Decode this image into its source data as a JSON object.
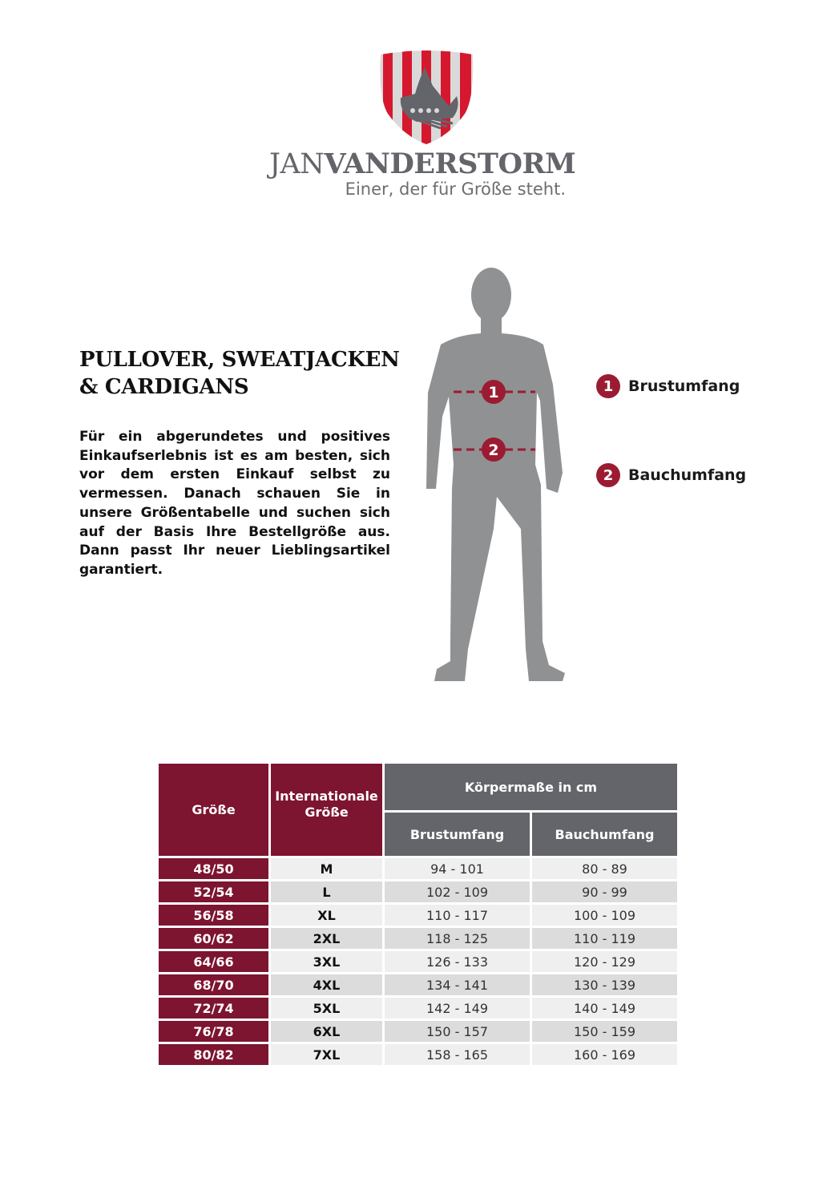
{
  "brand": {
    "name_light": "JAN",
    "name_bold": "VANDERSTORM",
    "tagline": "Einer, der für Größe steht."
  },
  "title": {
    "line1": "PULLOVER, SWEATJACKEN",
    "line2": "& CARDIGANS"
  },
  "intro": "Für ein abgerundetes und positives Einkaufserlebnis ist es am besten, sich vor dem ersten Einkauf selbst zu vermessen. Danach schauen Sie in unsere Größentabelle und suchen sich auf der Basis Ihre Bestellgröße aus. Dann passt Ihr neuer Lieblingsartikel garantiert.",
  "figure": {
    "markers": [
      "1",
      "2"
    ]
  },
  "legend": [
    {
      "num": "1",
      "label": "Brustumfang"
    },
    {
      "num": "2",
      "label": "Bauchumfang"
    }
  ],
  "colors": {
    "burgundy": "#7d1430",
    "header_gray": "#63656a",
    "marker_red": "#9b1c32",
    "row_light": "#efefef",
    "row_dark": "#dcdcdc"
  },
  "table": {
    "headers": {
      "size": "Größe",
      "intl": "Internationale Größe",
      "group": "Körpermaße in cm",
      "chest": "Brustumfang",
      "belly": "Bauchumfang"
    },
    "rows": [
      [
        "48/50",
        "M",
        "94 - 101",
        "80 - 89"
      ],
      [
        "52/54",
        "L",
        "102 - 109",
        "90 - 99"
      ],
      [
        "56/58",
        "XL",
        "110 - 117",
        "100 - 109"
      ],
      [
        "60/62",
        "2XL",
        "118 - 125",
        "110 - 119"
      ],
      [
        "64/66",
        "3XL",
        "126 - 133",
        "120 - 129"
      ],
      [
        "68/70",
        "4XL",
        "134 - 141",
        "130 - 139"
      ],
      [
        "72/74",
        "5XL",
        "142 - 149",
        "140 - 149"
      ],
      [
        "76/78",
        "6XL",
        "150 - 157",
        "150 - 159"
      ],
      [
        "80/82",
        "7XL",
        "158 - 165",
        "160 - 169"
      ]
    ]
  }
}
